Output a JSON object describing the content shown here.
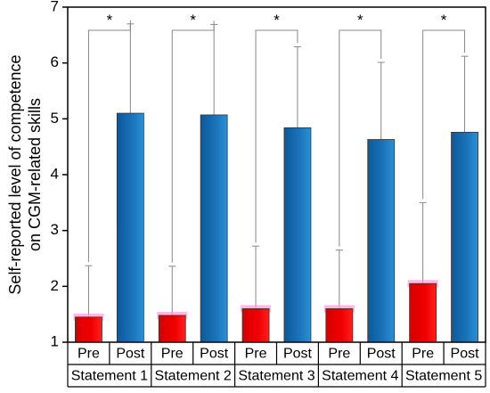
{
  "chart_data": {
    "type": "bar",
    "ylabel_lines": [
      "Self-reported level of competence",
      "on CGM-related skills"
    ],
    "ylim": [
      1,
      7
    ],
    "yticks": [
      1,
      2,
      3,
      4,
      5,
      6,
      7
    ],
    "groups": [
      "Statement 1",
      "Statement 2",
      "Statement 3",
      "Statement 4",
      "Statement 5"
    ],
    "subcategories": [
      "Pre",
      "Post"
    ],
    "series": [
      {
        "values": [
          1.45,
          1.48,
          1.6,
          1.6,
          2.05
        ],
        "errors": [
          0.92,
          0.88,
          1.12,
          1.05,
          1.45
        ]
      },
      {
        "values": [
          5.1,
          5.07,
          4.84,
          4.63,
          4.76
        ],
        "errors": [
          1.6,
          1.62,
          1.45,
          1.38,
          1.36
        ]
      }
    ],
    "significance_marker": "*",
    "colors": {
      "pre": "#ee0000",
      "post": "#1a6fb0"
    },
    "grid": false
  }
}
